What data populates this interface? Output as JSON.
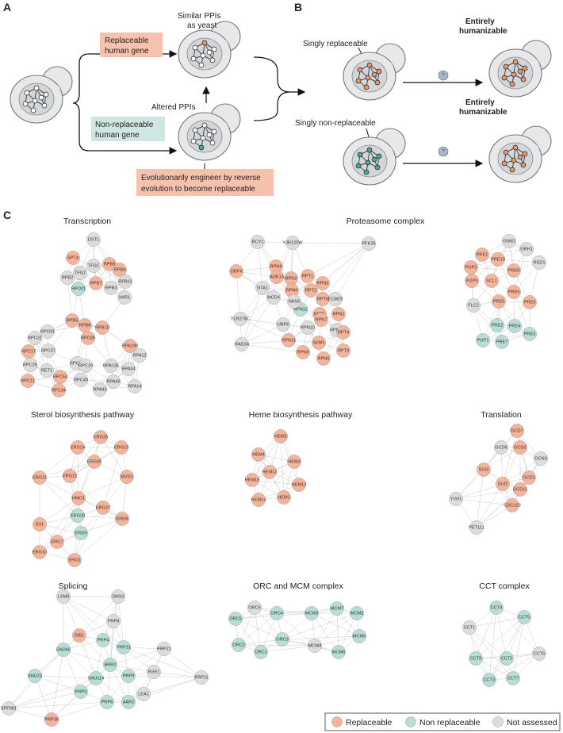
{
  "colors": {
    "replaceable": "#f5b49a",
    "non_replaceable": "#b7ddd7",
    "not_assessed": "#dcdcdc",
    "orange_node": "#e8956f",
    "teal_node": "#4aa892",
    "cell_fill": "#e6e8ea",
    "cell_stroke": "#777777",
    "box_replaceable": "#f7c2ad",
    "box_non_replaceable": "#cfe7e2"
  },
  "panel_a": {
    "letter": "A",
    "similar_label_1": "Similar PPIs",
    "similar_label_2": "as yeast",
    "replaceable_box_1": "Replaceable",
    "replaceable_box_2": "human gene",
    "altered_label": "Altered PPIs",
    "nonrep_box_1": "Non-replaceable",
    "nonrep_box_2": "human gene",
    "engineer_1": "Evolutionarily engineer by reverse",
    "engineer_2": "evolution to become replaceable"
  },
  "panel_b": {
    "letter": "B",
    "singly_rep": "Singly replaceable",
    "singly_nonrep": "Singly non-replaceable",
    "entire_1": "Entirely",
    "entire_2": "humanizable",
    "question": "?"
  },
  "panel_c": {
    "letter": "C",
    "networks": [
      {
        "title": "Transcription",
        "nodes": [
          [
            "DST1",
            "n"
          ],
          [
            "SPT4",
            "r"
          ],
          [
            "RPB9",
            "r"
          ],
          [
            "TFG1",
            "n"
          ],
          [
            "RPB4",
            "r"
          ],
          [
            "TFG2",
            "n"
          ],
          [
            "RPB2",
            "n"
          ],
          [
            "RPB7",
            "r"
          ],
          [
            "RPB11",
            "n"
          ],
          [
            "RPO21",
            "t"
          ],
          [
            "RPB3",
            "n"
          ],
          [
            "IWR1",
            "n"
          ],
          [
            "RPB5",
            "r"
          ],
          [
            "RPB8",
            "r"
          ],
          [
            "RPB10",
            "r"
          ],
          [
            "RPO26",
            "r"
          ],
          [
            "RPO31",
            "n"
          ],
          [
            "RPC31",
            "n"
          ],
          [
            "RPA190",
            "r"
          ],
          [
            "RPA12",
            "n"
          ],
          [
            "RPC17",
            "r"
          ],
          [
            "RPC37",
            "n"
          ],
          [
            "RPC82",
            "n"
          ],
          [
            "RPC25",
            "n"
          ],
          [
            "RPC19",
            "n"
          ],
          [
            "RPA135",
            "n"
          ],
          [
            "RPA34",
            "n"
          ],
          [
            "RET1",
            "n"
          ],
          [
            "RPC53",
            "r"
          ],
          [
            "RPC40",
            "n"
          ],
          [
            "RPA49",
            "n"
          ],
          [
            "RPC11",
            "r"
          ],
          [
            "RPC34",
            "r"
          ],
          [
            "RPA43",
            "n"
          ],
          [
            "RPA14",
            "n"
          ]
        ]
      },
      {
        "title": "Proteasome complex",
        "nodes": [
          [
            "RCY1",
            "n"
          ],
          [
            "YJR120W",
            "n"
          ],
          [
            "PFK26",
            "n"
          ],
          [
            "RPN9",
            "r"
          ],
          [
            "DBF4",
            "r"
          ],
          [
            "RPN2",
            "r"
          ],
          [
            "ADE13",
            "r"
          ],
          [
            "RPT1",
            "r"
          ],
          [
            "NTA1",
            "n"
          ],
          [
            "RPN6",
            "r"
          ],
          [
            "RPT2",
            "r"
          ],
          [
            "RPN3",
            "r"
          ],
          [
            "MCD4",
            "n"
          ],
          [
            "RPN12",
            "t"
          ],
          [
            "NAS6",
            "n"
          ],
          [
            "RPT6",
            "r"
          ],
          [
            "ECM29",
            "n"
          ],
          [
            "RPT5",
            "r"
          ],
          [
            "RPN1",
            "r"
          ],
          [
            "YLR278C",
            "n"
          ],
          [
            "UBP6",
            "n"
          ],
          [
            "RPN10",
            "n"
          ],
          [
            "RPN7",
            "r"
          ],
          [
            "RPN13",
            "n"
          ],
          [
            "RPN11",
            "r"
          ],
          [
            "SEM1",
            "r"
          ],
          [
            "RPT4",
            "r"
          ],
          [
            "RAD34",
            "n"
          ],
          [
            "RPN8",
            "r"
          ],
          [
            "RPT3",
            "r"
          ],
          [
            "RPN5",
            "r"
          ]
        ]
      },
      {
        "title": "",
        "nodes": [
          [
            "OSM1",
            "n"
          ],
          [
            "GRH1",
            "n"
          ],
          [
            "PRE1",
            "r"
          ],
          [
            "PRE10",
            "r"
          ],
          [
            "RED1",
            "n"
          ],
          [
            "PUP2",
            "r"
          ],
          [
            "PRE8",
            "r"
          ],
          [
            "SCL1",
            "r"
          ],
          [
            "PUP3",
            "r"
          ],
          [
            "PRE5",
            "r"
          ],
          [
            "PRE6",
            "r"
          ],
          [
            "PRE9",
            "r"
          ],
          [
            "FLC2",
            "n"
          ],
          [
            "PRE2",
            "t"
          ],
          [
            "PRE4",
            "t"
          ],
          [
            "PRE3",
            "t"
          ],
          [
            "PUP1",
            "t"
          ],
          [
            "PRE7",
            "t"
          ]
        ]
      },
      {
        "title": "Sterol biosynthesis pathway",
        "nodes": [
          [
            "ERG26",
            "r"
          ],
          [
            "ERG24",
            "r"
          ],
          [
            "ERG13",
            "r"
          ],
          [
            "ERG25",
            "r"
          ],
          [
            "ERG11",
            "r"
          ],
          [
            "ERG12",
            "r"
          ],
          [
            "MVD1",
            "r"
          ],
          [
            "HMG1",
            "r"
          ],
          [
            "ERG27",
            "r"
          ],
          [
            "ERG20",
            "t"
          ],
          [
            "IDI1",
            "r"
          ],
          [
            "ERG9",
            "t"
          ],
          [
            "ERG8",
            "r"
          ],
          [
            "ERG7",
            "r"
          ],
          [
            "ERG10",
            "r"
          ],
          [
            "ERG1",
            "r"
          ]
        ]
      },
      {
        "title": "Heme biosynthesis pathway",
        "nodes": [
          [
            "HEM2",
            "r"
          ],
          [
            "HEM4",
            "r"
          ],
          [
            "HEM3",
            "r"
          ],
          [
            "HEM13",
            "r"
          ],
          [
            "HEM15",
            "r"
          ],
          [
            "HEM12",
            "r"
          ],
          [
            "HEM14",
            "r"
          ],
          [
            "HEM1",
            "r"
          ]
        ]
      },
      {
        "title": "Translation",
        "nodes": [
          [
            "GCD7",
            "r"
          ],
          [
            "GCD6",
            "n"
          ],
          [
            "GCD2",
            "r"
          ],
          [
            "GCN3",
            "n"
          ],
          [
            "SUI3",
            "r"
          ],
          [
            "GCD1",
            "r"
          ],
          [
            "SUI2",
            "r"
          ],
          [
            "GCD11",
            "r"
          ],
          [
            "YVH1",
            "n"
          ],
          [
            "CDC123",
            "r"
          ],
          [
            "PET111",
            "n"
          ]
        ]
      },
      {
        "title": "Splicing",
        "nodes": [
          [
            "LSM8",
            "n"
          ],
          [
            "SMX2",
            "n"
          ],
          [
            "PRP8",
            "n"
          ],
          [
            "DIB1",
            "r"
          ],
          [
            "PRP4",
            "t"
          ],
          [
            "PRP31",
            "t"
          ],
          [
            "PRP21",
            "n"
          ],
          [
            "SNU66",
            "t"
          ],
          [
            "BRR2",
            "t"
          ],
          [
            "RSE1",
            "n"
          ],
          [
            "SNU23",
            "t"
          ],
          [
            "SNU114",
            "t"
          ],
          [
            "PRP9",
            "t"
          ],
          [
            "PRP11",
            "n"
          ],
          [
            "PRP3",
            "t"
          ],
          [
            "LEA1",
            "n"
          ],
          [
            "PRP6",
            "t"
          ],
          [
            "AAR2",
            "t"
          ],
          [
            "SPP381",
            "n"
          ],
          [
            "PRP38",
            "r"
          ]
        ]
      },
      {
        "title": "ORC and MCM complex",
        "nodes": [
          [
            "ORC6",
            "n"
          ],
          [
            "ORC4",
            "t"
          ],
          [
            "ORC5",
            "t"
          ],
          [
            "ORC3",
            "t"
          ],
          [
            "ORC2",
            "t"
          ],
          [
            "ORC1",
            "t"
          ],
          [
            "MCM7",
            "t"
          ],
          [
            "MCM3",
            "t"
          ],
          [
            "MCM2",
            "t"
          ],
          [
            "MCM5",
            "t"
          ],
          [
            "MCM4",
            "n"
          ],
          [
            "MCM6",
            "t"
          ]
        ]
      },
      {
        "title": "CCT complex",
        "nodes": [
          [
            "CCT4",
            "t"
          ],
          [
            "CCT5",
            "t"
          ],
          [
            "CCT1",
            "n"
          ],
          [
            "CCT8",
            "t"
          ],
          [
            "CCT2",
            "t"
          ],
          [
            "CCT6",
            "n"
          ],
          [
            "CCT3",
            "t"
          ],
          [
            "CCT7",
            "t"
          ]
        ]
      }
    ]
  },
  "legend": {
    "replaceable": "Replaceable",
    "non_replaceable": "Non replaceable",
    "not_assessed": "Not assessed"
  }
}
